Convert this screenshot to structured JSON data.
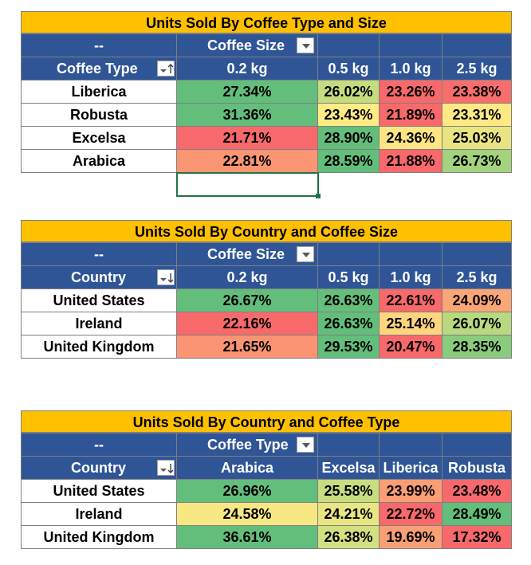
{
  "pivots": [
    {
      "title": "Units Sold By Coffee Type and Size",
      "corner": "--",
      "col_field": "Coffee Size",
      "row_field": "Coffee Type",
      "row_sort": "ascending",
      "columns": [
        "0.2 kg",
        "0.5 kg",
        "1.0 kg",
        "2.5 kg"
      ],
      "rows": [
        {
          "label": "Liberica",
          "values": [
            "27.34%",
            "26.02%",
            "23.26%",
            "23.38%"
          ],
          "colors": [
            "#63BE7B",
            "#C5DC7F",
            "#F8696B",
            "#F86E6C"
          ]
        },
        {
          "label": "Robusta",
          "values": [
            "31.36%",
            "23.43%",
            "21.89%",
            "23.31%"
          ],
          "colors": [
            "#63BE7B",
            "#FFEB84",
            "#F8696B",
            "#FFE983"
          ]
        },
        {
          "label": "Excelsa",
          "values": [
            "21.71%",
            "28.90%",
            "24.36%",
            "25.03%"
          ],
          "colors": [
            "#F8696B",
            "#63BE7B",
            "#FFE583",
            "#E9E482"
          ]
        },
        {
          "label": "Arabica",
          "values": [
            "22.81%",
            "28.59%",
            "21.88%",
            "26.73%"
          ],
          "colors": [
            "#FA9673",
            "#63BE7B",
            "#F8696B",
            "#A3D37E"
          ]
        }
      ]
    },
    {
      "title": "Units Sold By Country and Coffee Size",
      "corner": "--",
      "col_field": "Coffee Size",
      "row_field": "Country",
      "row_sort": "descending",
      "columns": [
        "0.2 kg",
        "0.5 kg",
        "1.0 kg",
        "2.5 kg"
      ],
      "rows": [
        {
          "label": "United States",
          "values": [
            "26.67%",
            "26.63%",
            "22.61%",
            "24.09%"
          ],
          "colors": [
            "#63BE7B",
            "#65BF7B",
            "#F8696B",
            "#FBA676"
          ]
        },
        {
          "label": "Ireland",
          "values": [
            "22.16%",
            "26.63%",
            "25.14%",
            "26.07%"
          ],
          "colors": [
            "#F8696B",
            "#63BE7B",
            "#FDD57F",
            "#B9D980"
          ]
        },
        {
          "label": "United Kingdom",
          "values": [
            "21.65%",
            "29.53%",
            "20.47%",
            "28.35%"
          ],
          "colors": [
            "#FA9473",
            "#63BE7B",
            "#F8696B",
            "#8ACB7E"
          ]
        }
      ]
    },
    {
      "title": "Units Sold By Country and Coffee Type",
      "corner": "--",
      "col_field": "Coffee Type",
      "row_field": "Country",
      "row_sort": "descending",
      "columns": [
        "Arabica",
        "Excelsa",
        "Liberica",
        "Robusta"
      ],
      "rows": [
        {
          "label": "United States",
          "values": [
            "26.96%",
            "25.58%",
            "23.99%",
            "23.48%"
          ],
          "colors": [
            "#63BE7B",
            "#C7DD80",
            "#FB9D75",
            "#F8696B"
          ]
        },
        {
          "label": "Ireland",
          "values": [
            "24.58%",
            "24.21%",
            "22.72%",
            "28.49%"
          ],
          "colors": [
            "#F8E883",
            "#E8E582",
            "#F8696B",
            "#63BE7B"
          ]
        },
        {
          "label": "United Kingdom",
          "values": [
            "36.61%",
            "26.38%",
            "19.69%",
            "17.32%"
          ],
          "colors": [
            "#63BE7B",
            "#D3E082",
            "#F99F75",
            "#F8696B"
          ]
        }
      ]
    }
  ]
}
